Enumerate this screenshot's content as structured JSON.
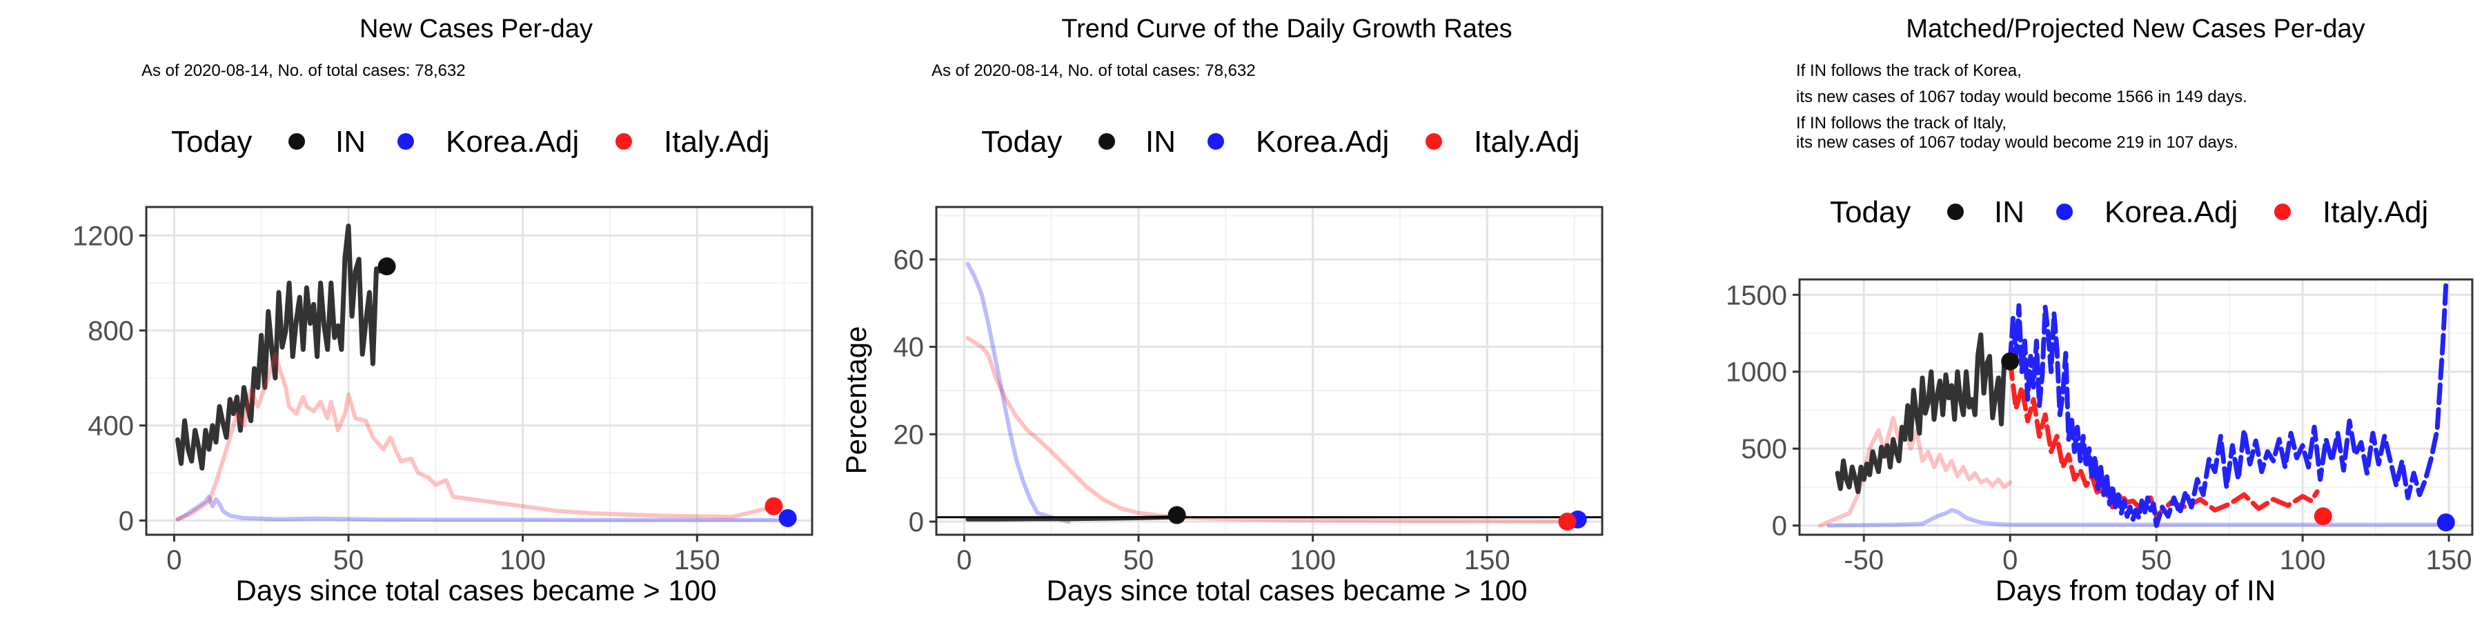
{
  "chart_data": [
    {
      "type": "line",
      "title": "New Cases Per-day",
      "subtitle": [
        "As of 2020-08-14, No. of total cases: 78,632"
      ],
      "xlabel": "Days since total cases became > 100",
      "ylabel": "",
      "xlim": [
        -8,
        183
      ],
      "ylim": [
        -60,
        1320
      ],
      "xticks": [
        0,
        50,
        100,
        150
      ],
      "yticks": [
        0,
        400,
        800,
        1200
      ],
      "grid": true,
      "legend": {
        "position": "top",
        "title": "Today",
        "entries": [
          "IN",
          "Korea.Adj",
          "Italy.Adj"
        ]
      },
      "series": [
        {
          "name": "IN",
          "color": "#333333",
          "opacity": 1,
          "width": 7,
          "x": [
            1,
            2,
            3,
            4,
            5,
            6,
            7,
            8,
            9,
            10,
            11,
            12,
            13,
            14,
            15,
            16,
            17,
            18,
            19,
            20,
            21,
            22,
            23,
            24,
            25,
            26,
            27,
            28,
            29,
            30,
            31,
            32,
            33,
            34,
            35,
            36,
            37,
            38,
            39,
            40,
            41,
            42,
            43,
            44,
            45,
            46,
            47,
            48,
            49,
            50,
            51,
            52,
            53,
            54,
            55,
            56,
            57,
            58,
            59,
            60
          ],
          "y": [
            340,
            240,
            420,
            300,
            250,
            380,
            310,
            220,
            380,
            300,
            400,
            330,
            480,
            410,
            350,
            510,
            450,
            520,
            380,
            560,
            480,
            420,
            640,
            560,
            780,
            560,
            880,
            720,
            600,
            960,
            730,
            800,
            1000,
            690,
            840,
            940,
            720,
            980,
            830,
            910,
            690,
            1000,
            820,
            720,
            1000,
            770,
            820,
            720,
            1110,
            1240,
            860,
            1050,
            1100,
            700,
            840,
            960,
            660,
            1060,
            1050,
            1070
          ]
        },
        {
          "name": "Korea.Adj",
          "color": "#2222ff",
          "opacity": 0.3,
          "width": 6,
          "x": [
            1,
            3,
            5,
            7,
            9,
            10,
            11,
            12,
            13,
            14,
            15,
            16,
            18,
            20,
            25,
            30,
            40,
            50,
            60,
            80,
            100,
            120,
            140,
            160,
            172,
            175
          ],
          "y": [
            5,
            20,
            40,
            60,
            80,
            100,
            60,
            90,
            70,
            40,
            30,
            20,
            15,
            10,
            8,
            5,
            8,
            6,
            4,
            3,
            3,
            2,
            2,
            2,
            2,
            1
          ]
        },
        {
          "name": "Italy.Adj",
          "color": "#ff3333",
          "opacity": 0.3,
          "width": 6,
          "x": [
            1,
            5,
            10,
            12,
            15,
            18,
            20,
            22,
            24,
            25,
            27,
            29,
            30,
            32,
            33,
            35,
            37,
            38,
            40,
            42,
            44,
            45,
            47,
            49,
            50,
            52,
            55,
            57,
            60,
            62,
            65,
            68,
            70,
            73,
            75,
            78,
            80,
            85,
            90,
            95,
            100,
            110,
            120,
            130,
            140,
            150,
            160,
            170,
            172
          ],
          "y": [
            5,
            30,
            80,
            160,
            300,
            450,
            400,
            550,
            480,
            520,
            600,
            700,
            650,
            560,
            480,
            450,
            520,
            480,
            460,
            500,
            430,
            500,
            380,
            450,
            530,
            430,
            420,
            350,
            300,
            350,
            250,
            260,
            200,
            180,
            150,
            170,
            100,
            90,
            80,
            70,
            60,
            40,
            30,
            25,
            20,
            18,
            15,
            50,
            60
          ]
        }
      ],
      "today_points": [
        {
          "name": "IN",
          "x": 61,
          "y": 1070
        },
        {
          "name": "Korea.Adj",
          "x": 176,
          "y": 10
        },
        {
          "name": "Italy.Adj",
          "x": 172,
          "y": 60
        }
      ]
    },
    {
      "type": "line",
      "title": "Trend Curve of the Daily Growth Rates",
      "subtitle": [
        "As of 2020-08-14, No. of total cases: 78,632"
      ],
      "xlabel": "Days since total cases became > 100",
      "ylabel": "Percentage",
      "xlim": [
        -8,
        183
      ],
      "ylim": [
        -3,
        72
      ],
      "xticks": [
        0,
        50,
        100,
        150
      ],
      "yticks": [
        0,
        20,
        40,
        60
      ],
      "grid": true,
      "hline": 1,
      "legend": {
        "position": "top",
        "title": "Today",
        "entries": [
          "IN",
          "Korea.Adj",
          "Italy.Adj"
        ]
      },
      "series": [
        {
          "name": "Korea.Adj",
          "color": "#2222ff",
          "opacity": 0.3,
          "width": 6,
          "x": [
            1,
            3,
            5,
            7,
            9,
            11,
            13,
            15,
            17,
            19,
            21,
            25,
            30
          ],
          "y": [
            59,
            56,
            52,
            45,
            37,
            29,
            21,
            14,
            9,
            5,
            2,
            1,
            0
          ]
        },
        {
          "name": "Italy.Adj",
          "color": "#ff3333",
          "opacity": 0.3,
          "width": 6,
          "x": [
            1,
            3,
            5,
            7,
            9,
            12,
            15,
            18,
            21,
            25,
            30,
            35,
            40,
            45,
            50,
            60,
            80,
            100,
            120,
            150,
            172
          ],
          "y": [
            42,
            41,
            40,
            38,
            33,
            28,
            24,
            21,
            19,
            16,
            12,
            8,
            5,
            3,
            2,
            1,
            0.5,
            0.3,
            0.2,
            0.1,
            0
          ]
        },
        {
          "name": "IN",
          "color": "#333333",
          "opacity": 1,
          "width": 6,
          "x": [
            1,
            10,
            20,
            30,
            40,
            50,
            60
          ],
          "y": [
            0.5,
            0.5,
            0.6,
            0.6,
            0.7,
            0.8,
            1
          ]
        }
      ],
      "today_points": [
        {
          "name": "IN",
          "x": 61,
          "y": 1.5
        },
        {
          "name": "Korea.Adj",
          "x": 176,
          "y": 0.5
        },
        {
          "name": "Italy.Adj",
          "x": 173,
          "y": 0
        }
      ]
    },
    {
      "type": "line",
      "title": "Matched/Projected New Cases Per-day",
      "subtitle": [
        "If IN follows the track of Korea,",
        "its new cases of 1067 today would become 1566 in 149 days.",
        "If IN follows the track of Italy,",
        "its new cases of 1067 today would become 219 in 107 days."
      ],
      "xlabel": "Days from today of IN",
      "ylabel": "",
      "xlim": [
        -72,
        158
      ],
      "ylim": [
        -60,
        1600
      ],
      "xticks": [
        -50,
        0,
        50,
        100,
        150
      ],
      "yticks": [
        0,
        500,
        1000,
        1500
      ],
      "grid": true,
      "legend": {
        "position": "top",
        "title": "Today",
        "entries": [
          "IN",
          "Korea.Adj",
          "Italy.Adj"
        ]
      },
      "series": [
        {
          "name": "Korea.Adj (past)",
          "color": "#2222ff",
          "opacity": 0.3,
          "width": 6,
          "x": [
            -62,
            -40,
            -30,
            -25,
            -22,
            -20,
            -18,
            -15,
            -12,
            -10,
            -5,
            0,
            20,
            50,
            100,
            150
          ],
          "y": [
            0,
            5,
            10,
            60,
            80,
            100,
            90,
            50,
            30,
            20,
            10,
            5,
            5,
            5,
            5,
            5
          ]
        },
        {
          "name": "Italy.Adj (past)",
          "color": "#ff3333",
          "opacity": 0.3,
          "width": 6,
          "x": [
            -65,
            -60,
            -55,
            -52,
            -50,
            -48,
            -45,
            -43,
            -40,
            -38,
            -36,
            -34,
            -32,
            -30,
            -28,
            -26,
            -24,
            -22,
            -20,
            -18,
            -16,
            -14,
            -12,
            -10,
            -8,
            -6,
            -4,
            -2,
            0
          ],
          "y": [
            0,
            40,
            80,
            200,
            350,
            500,
            620,
            480,
            700,
            560,
            640,
            500,
            620,
            420,
            480,
            380,
            460,
            360,
            420,
            320,
            380,
            300,
            340,
            280,
            300,
            260,
            300,
            250,
            280
          ]
        },
        {
          "name": "IN",
          "color": "#333333",
          "opacity": 1,
          "width": 7,
          "x": [
            -59,
            -58,
            -57,
            -56,
            -55,
            -54,
            -53,
            -52,
            -51,
            -50,
            -49,
            -48,
            -47,
            -46,
            -45,
            -44,
            -43,
            -42,
            -41,
            -40,
            -39,
            -38,
            -37,
            -36,
            -35,
            -34,
            -33,
            -32,
            -31,
            -30,
            -29,
            -28,
            -27,
            -26,
            -25,
            -24,
            -23,
            -22,
            -21,
            -20,
            -19,
            -18,
            -17,
            -16,
            -15,
            -14,
            -13,
            -12,
            -11,
            -10,
            -9,
            -8,
            -7,
            -6,
            -5,
            -4,
            -3,
            -2,
            -1,
            0
          ],
          "y": [
            340,
            240,
            420,
            300,
            250,
            380,
            310,
            220,
            380,
            300,
            400,
            330,
            480,
            410,
            350,
            510,
            450,
            520,
            380,
            560,
            480,
            420,
            640,
            560,
            780,
            560,
            880,
            720,
            600,
            960,
            730,
            800,
            1000,
            690,
            840,
            940,
            720,
            980,
            830,
            910,
            690,
            1000,
            820,
            720,
            1000,
            770,
            820,
            720,
            1110,
            1240,
            860,
            1050,
            1100,
            700,
            840,
            960,
            660,
            1060,
            1050,
            1070
          ]
        },
        {
          "name": "Italy.Adj (projected)",
          "color": "#ff2222",
          "opacity": 1,
          "width": 7,
          "dashed": true,
          "x": [
            0,
            2,
            4,
            6,
            8,
            10,
            12,
            14,
            16,
            18,
            20,
            22,
            24,
            26,
            28,
            30,
            32,
            35,
            38,
            40,
            42,
            45,
            48,
            50,
            55,
            60,
            65,
            70,
            75,
            80,
            85,
            90,
            95,
            100,
            103,
            105
          ],
          "y": [
            1070,
            760,
            900,
            680,
            820,
            580,
            720,
            480,
            580,
            380,
            460,
            300,
            360,
            260,
            320,
            200,
            260,
            120,
            200,
            150,
            160,
            100,
            180,
            60,
            150,
            120,
            170,
            100,
            140,
            200,
            110,
            170,
            130,
            190,
            160,
            220
          ]
        },
        {
          "name": "Korea.Adj (projected)",
          "color": "#2222ff",
          "opacity": 1,
          "width": 7,
          "dashed": true,
          "x": [
            0,
            1,
            2,
            3,
            4,
            5,
            6,
            7,
            8,
            9,
            10,
            11,
            12,
            13,
            14,
            15,
            16,
            17,
            18,
            19,
            20,
            21,
            22,
            23,
            24,
            25,
            26,
            27,
            28,
            29,
            30,
            31,
            32,
            33,
            34,
            35,
            36,
            37,
            38,
            39,
            40,
            41,
            42,
            43,
            44,
            45,
            46,
            47,
            48,
            49,
            50,
            52,
            54,
            56,
            58,
            60,
            62,
            64,
            66,
            68,
            70,
            72,
            74,
            76,
            78,
            80,
            82,
            84,
            86,
            88,
            90,
            92,
            94,
            96,
            98,
            100,
            102,
            104,
            106,
            108,
            110,
            112,
            114,
            116,
            118,
            120,
            122,
            124,
            126,
            128,
            130,
            132,
            134,
            136,
            138,
            140,
            142,
            144,
            146,
            148,
            149
          ],
          "y": [
            1070,
            1350,
            1100,
            1430,
            1000,
            1200,
            820,
            1100,
            900,
            1200,
            780,
            980,
            1420,
            1250,
            1000,
            1380,
            1150,
            720,
            850,
            1120,
            560,
            700,
            480,
            640,
            420,
            580,
            380,
            500,
            300,
            450,
            240,
            380,
            200,
            330,
            140,
            260,
            120,
            200,
            80,
            160,
            60,
            120,
            40,
            100,
            50,
            160,
            80,
            180,
            100,
            140,
            0,
            120,
            60,
            180,
            80,
            220,
            120,
            300,
            200,
            430,
            350,
            580,
            250,
            520,
            300,
            620,
            400,
            550,
            350,
            480,
            420,
            560,
            380,
            600,
            440,
            520,
            380,
            640,
            300,
            560,
            420,
            600,
            360,
            680,
            460,
            540,
            340,
            600,
            400,
            580,
            420,
            260,
            420,
            180,
            340,
            200,
            300,
            440,
            620,
            1200,
            1566
          ]
        }
      ],
      "today_points": [
        {
          "name": "IN",
          "x": 0,
          "y": 1067
        },
        {
          "name": "Korea.Adj",
          "x": 149,
          "y": 20
        },
        {
          "name": "Italy.Adj",
          "x": 107,
          "y": 60
        }
      ]
    }
  ],
  "colors": {
    "IN": "#111111",
    "Korea.Adj": "#1a1aff",
    "Italy.Adj": "#ff1a1a"
  }
}
